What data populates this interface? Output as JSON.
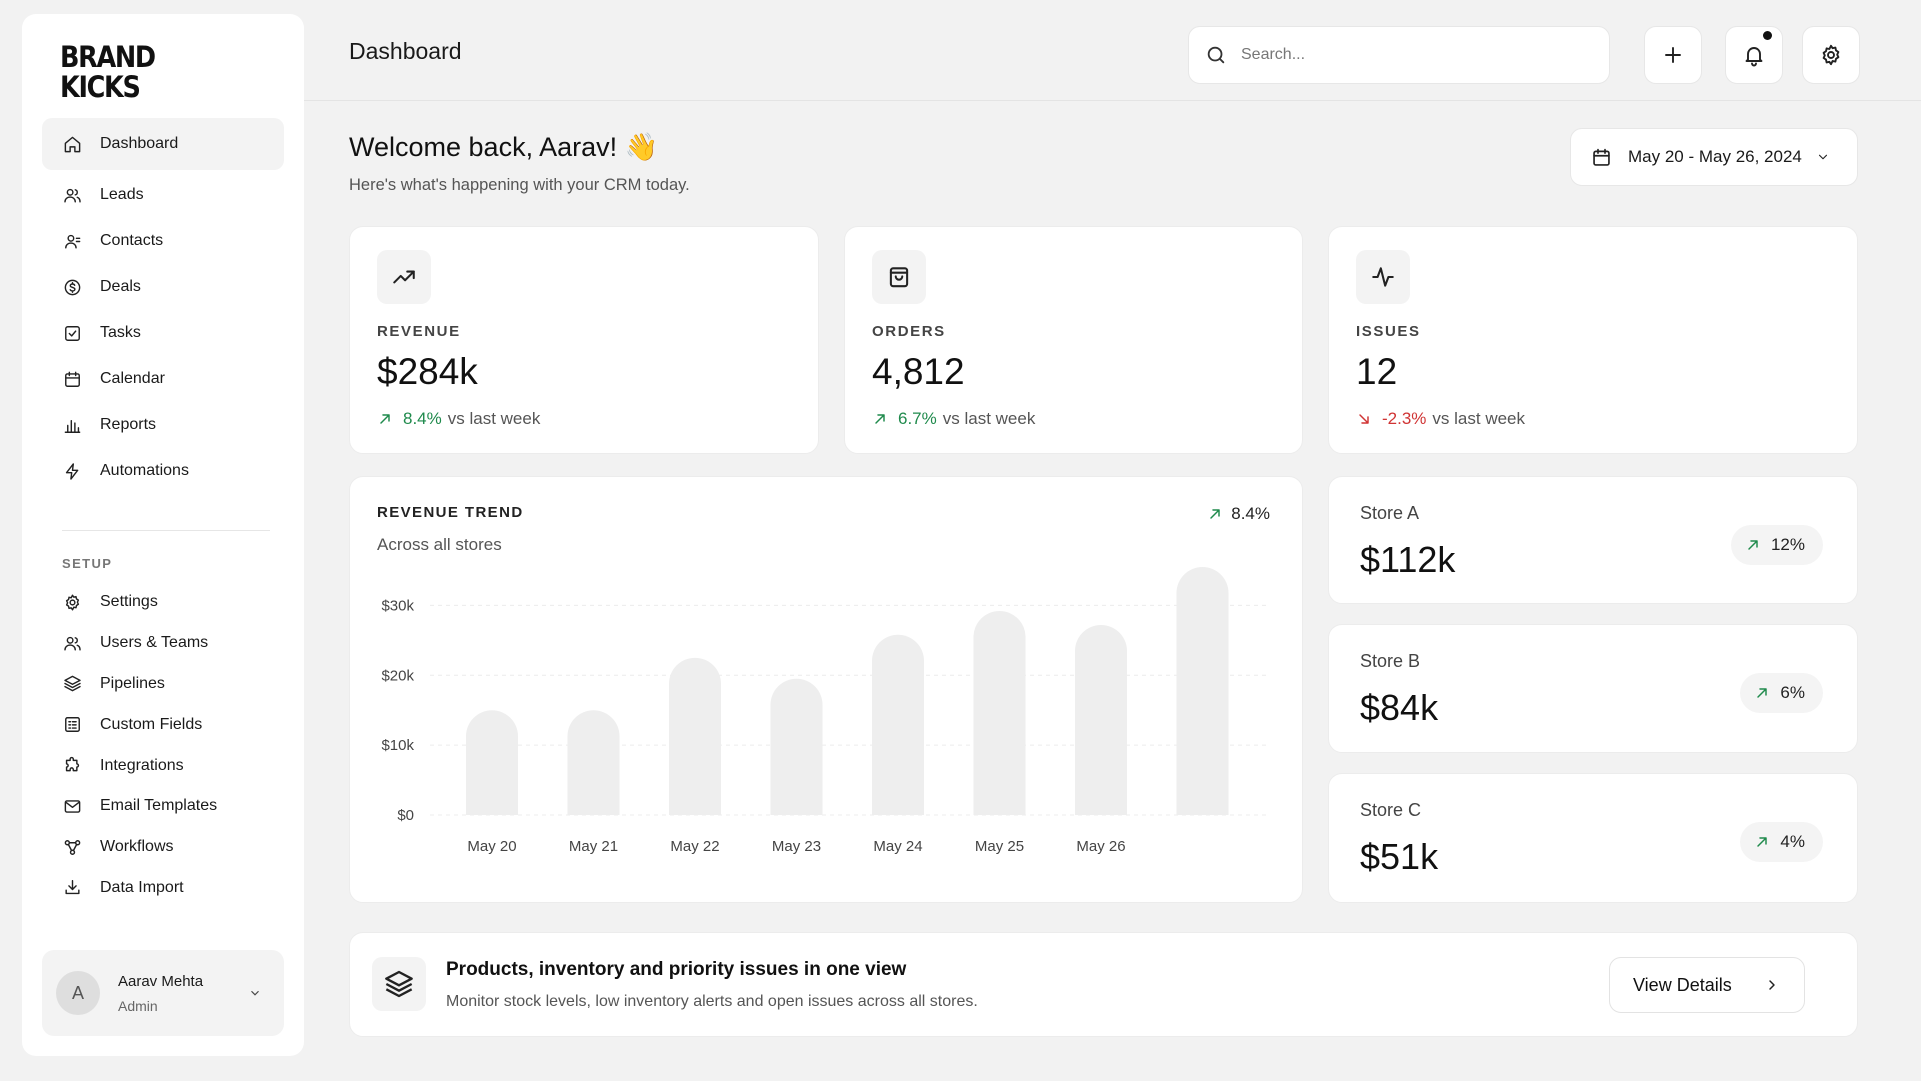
{
  "brand": {
    "logo_text": "BRAND KICKS"
  },
  "sidebar": {
    "main": [
      {
        "label": "Dashboard",
        "icon": "home-icon"
      },
      {
        "label": "Leads",
        "icon": "users-icon"
      },
      {
        "label": "Contacts",
        "icon": "contact-icon"
      },
      {
        "label": "Deals",
        "icon": "dollar-icon"
      },
      {
        "label": "Tasks",
        "icon": "checkbox-icon"
      },
      {
        "label": "Calendar",
        "icon": "calendar-icon"
      },
      {
        "label": "Reports",
        "icon": "bar-chart-icon"
      },
      {
        "label": "Automations",
        "icon": "lightning-icon"
      }
    ],
    "setup_label": "SETUP",
    "setup": [
      {
        "label": "Settings",
        "icon": "gear-icon"
      },
      {
        "label": "Users & Teams",
        "icon": "users-icon"
      },
      {
        "label": "Pipelines",
        "icon": "layers-icon"
      },
      {
        "label": "Custom Fields",
        "icon": "form-icon"
      },
      {
        "label": "Integrations",
        "icon": "puzzle-icon"
      },
      {
        "label": "Email Templates",
        "icon": "mail-icon"
      },
      {
        "label": "Workflows",
        "icon": "workflow-icon"
      },
      {
        "label": "Data Import",
        "icon": "download-icon"
      }
    ],
    "user": {
      "initial": "A",
      "name": "Aarav Mehta",
      "role": "Admin"
    }
  },
  "header": {
    "title": "Dashboard",
    "search_placeholder": "Search..."
  },
  "welcome": {
    "title": "Welcome back, Aarav! 👋",
    "subtitle": "Here's what's happening with your CRM today.",
    "date_range": "May 20 - May 26, 2024"
  },
  "kpis": [
    {
      "label": "REVENUE",
      "value": "$284k",
      "delta": "8.4%",
      "delta_suffix": "vs last week",
      "direction": "up"
    },
    {
      "label": "ORDERS",
      "value": "4,812",
      "delta": "6.7%",
      "delta_suffix": "vs last week",
      "direction": "up"
    },
    {
      "label": "ISSUES",
      "value": "12",
      "delta": "-2.3%",
      "delta_suffix": "vs last week",
      "direction": "down"
    }
  ],
  "revenue_chart": {
    "title": "REVENUE TREND",
    "subtitle": "Across all stores",
    "trend": "8.4%"
  },
  "chart_data": {
    "type": "bar",
    "title": "REVENUE TREND",
    "subtitle": "Across all stores",
    "categories": [
      "May 20",
      "May 21",
      "May 22",
      "May 23",
      "May 24",
      "May 25",
      "May 26",
      ""
    ],
    "values": [
      15000,
      15000,
      22500,
      19500,
      25800,
      29200,
      27200,
      35500
    ],
    "yticks": [
      0,
      10000,
      20000,
      30000
    ],
    "ytick_labels": [
      "$0",
      "$10k",
      "$20k",
      "$30k"
    ],
    "ylim": [
      0,
      35500
    ],
    "grid": true,
    "bar_color": "#eeeeee"
  },
  "stores": [
    {
      "name": "Store A",
      "value": "$112k",
      "change": "12%"
    },
    {
      "name": "Store B",
      "value": "$84k",
      "change": "6%"
    },
    {
      "name": "Store C",
      "value": "$51k",
      "change": "4%"
    }
  ],
  "banner": {
    "title": "Products, inventory and priority issues in one view",
    "subtitle": "Monitor stock levels, low inventory alerts and open issues across all stores.",
    "button": "View Details"
  },
  "colors": {
    "positive": "#1f8a4c",
    "negative": "#d03434",
    "background": "#f2f2f2"
  }
}
